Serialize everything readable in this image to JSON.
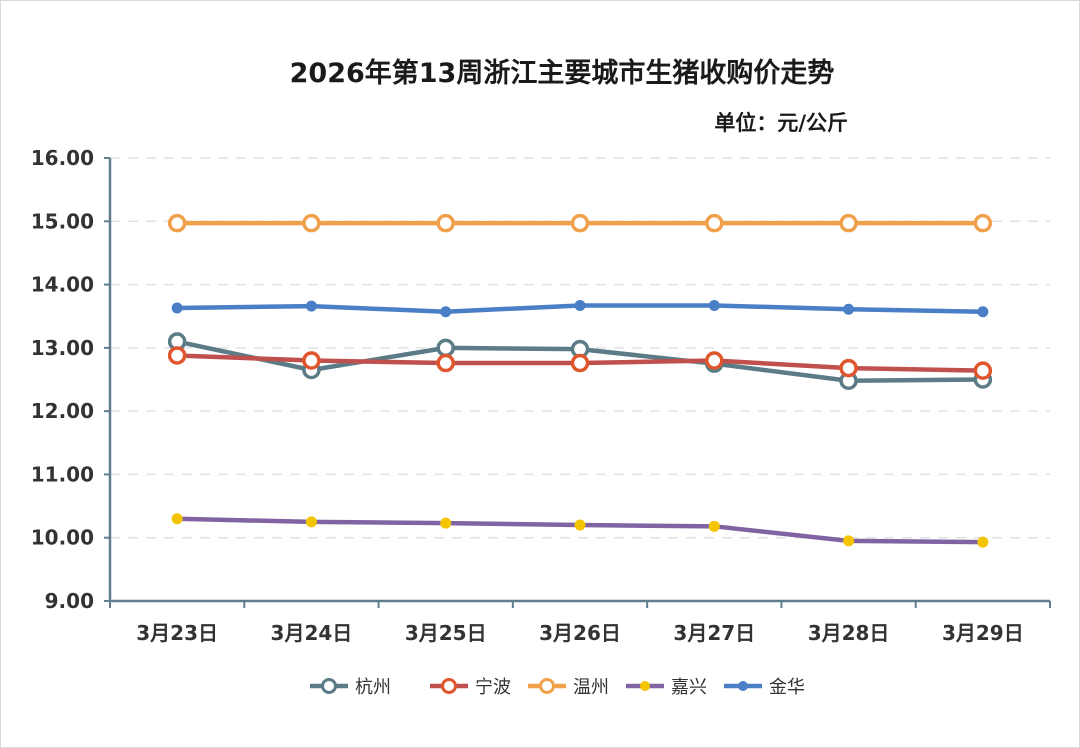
{
  "chart_data": {
    "type": "line",
    "title": "2026年第13周浙江主要城市生猪收购价走势",
    "unit": "单位：元/公斤",
    "xlabel": "",
    "ylabel": "",
    "ylim": [
      9,
      16
    ],
    "ytick_step": 1,
    "yticks": [
      "9.00",
      "10.00",
      "11.00",
      "12.00",
      "13.00",
      "14.00",
      "15.00",
      "16.00"
    ],
    "grid": true,
    "legend_position": "bottom",
    "categories": [
      "3月23日",
      "3月24日",
      "3月25日",
      "3月26日",
      "3月27日",
      "3月28日",
      "3月29日"
    ],
    "series": [
      {
        "name": "杭州",
        "line_color": "#5b7c87",
        "marker": "hollow-circle",
        "marker_color": "#5b7c87",
        "values": [
          13.1,
          12.65,
          13.0,
          12.98,
          12.75,
          12.48,
          12.5
        ]
      },
      {
        "name": "宁波",
        "line_color": "#c0504d",
        "marker": "hollow-circle",
        "marker_color": "#e0562c",
        "values": [
          12.88,
          12.8,
          12.76,
          12.76,
          12.8,
          12.68,
          12.64
        ]
      },
      {
        "name": "温州",
        "line_color": "#f0a04b",
        "marker": "hollow-circle",
        "marker_color": "#f0a04b",
        "values": [
          14.97,
          14.97,
          14.97,
          14.97,
          14.97,
          14.97,
          14.97
        ]
      },
      {
        "name": "嘉兴",
        "line_color": "#8064a2",
        "marker": "filled-circle",
        "marker_color": "#f5c400",
        "values": [
          10.3,
          10.25,
          10.23,
          10.2,
          10.18,
          9.95,
          9.93
        ]
      },
      {
        "name": "金华",
        "line_color": "#4a7fc8",
        "marker": "filled-circle",
        "marker_color": "#4a7fc8",
        "values": [
          13.63,
          13.66,
          13.57,
          13.67,
          13.67,
          13.61,
          13.57
        ]
      }
    ]
  }
}
